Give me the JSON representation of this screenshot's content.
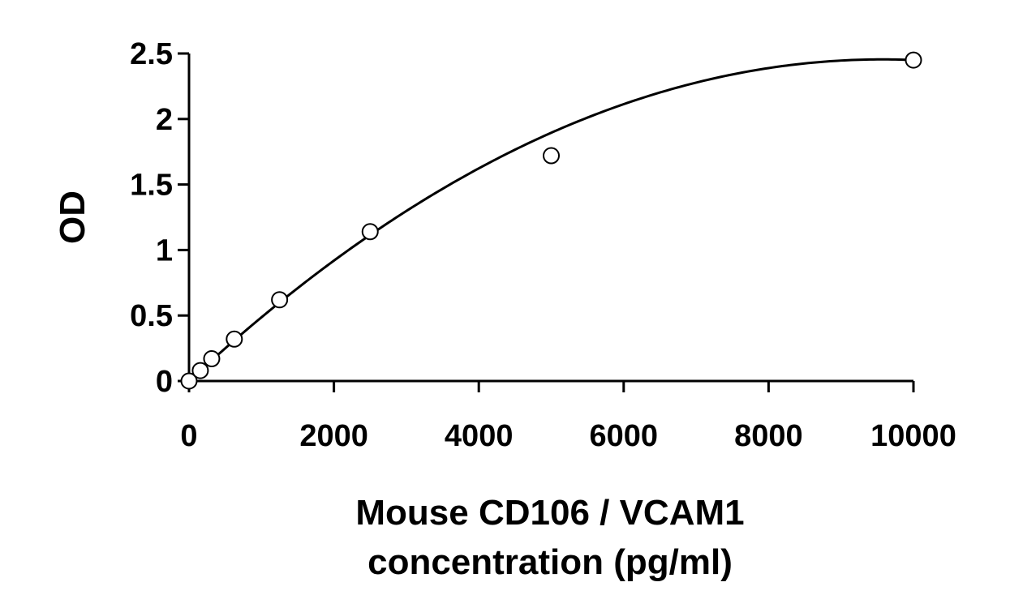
{
  "chart_data": {
    "type": "scatter",
    "title": "",
    "ylabel": "OD",
    "xlabel_lines": [
      "Mouse CD106 / VCAM1",
      "concentration (pg/ml)"
    ],
    "xlim": [
      0,
      10000
    ],
    "ylim": [
      0,
      2.5
    ],
    "x_ticks": [
      0,
      2000,
      4000,
      6000,
      8000,
      10000
    ],
    "x_tick_labels": [
      "0",
      "2000",
      "4000",
      "6000",
      "8000",
      "10000"
    ],
    "y_ticks": [
      0,
      0.5,
      1,
      1.5,
      2,
      2.5
    ],
    "y_tick_labels": [
      "0",
      "0.5",
      "1",
      "1.5",
      "2",
      "2.5"
    ],
    "grid": false,
    "series": [
      {
        "x": [
          0,
          156,
          313,
          625,
          1250,
          2500,
          5000,
          10000
        ],
        "y": [
          0.0,
          0.08,
          0.17,
          0.32,
          0.62,
          1.14,
          1.72,
          2.45
        ]
      }
    ],
    "fit_curve": {
      "type": "polynomial",
      "coefficients": [
        0.0,
        0.000513,
        -2.68e-08
      ]
    },
    "colors": {
      "axis": "#000000",
      "marker_fill": "#ffffff",
      "marker_stroke": "#000000"
    }
  }
}
